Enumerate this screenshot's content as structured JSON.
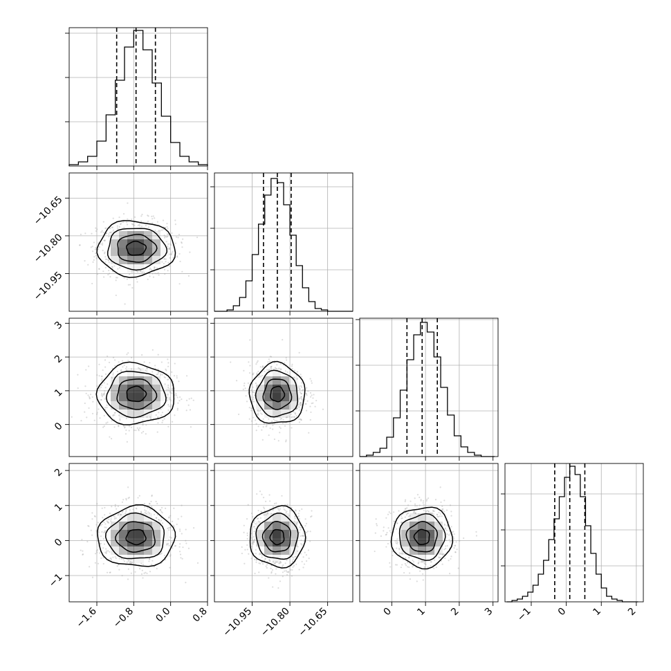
{
  "chart_data": {
    "type": "corner",
    "parameters": [
      {
        "range": [
          -2.2,
          0.8
        ],
        "ticks": [
          -1.6,
          -0.8,
          0.0,
          0.8
        ],
        "tick_labels": [
          "−1.6",
          "−0.8",
          "0.0",
          "0.8"
        ],
        "mean": -0.75,
        "sd": 0.42,
        "quantiles": [
          -1.17,
          -0.75,
          -0.33
        ]
      },
      {
        "range": [
          -11.1,
          -10.55
        ],
        "ticks": [
          -10.95,
          -10.8,
          -10.65
        ],
        "tick_labels": [
          "−10.95",
          "−10.80",
          "−10.65"
        ],
        "mean": -10.85,
        "sd": 0.055,
        "quantiles": [
          -10.905,
          -10.85,
          -10.795
        ]
      },
      {
        "range": [
          -0.95,
          3.15
        ],
        "ticks": [
          0,
          1,
          2,
          3
        ],
        "tick_labels": [
          "0",
          "1",
          "2",
          "3"
        ],
        "mean": 0.9,
        "sd": 0.45,
        "quantiles": [
          0.45,
          0.9,
          1.35
        ]
      },
      {
        "range": [
          -1.75,
          2.2
        ],
        "ticks": [
          -1,
          0,
          1,
          2
        ],
        "tick_labels": [
          "−1",
          "0",
          "1",
          "2"
        ],
        "mean": 0.1,
        "sd": 0.43,
        "quantiles": [
          -0.33,
          0.1,
          0.53
        ]
      }
    ],
    "histograms": [
      {
        "param": 0,
        "bin_edges": [
          -2.2,
          -2.0,
          -1.8,
          -1.6,
          -1.4,
          -1.2,
          -1.0,
          -0.8,
          -0.6,
          -0.4,
          -0.2,
          0.0,
          0.2,
          0.4,
          0.6,
          0.8
        ],
        "counts": [
          0.01,
          0.03,
          0.07,
          0.18,
          0.37,
          0.62,
          0.86,
          0.98,
          0.84,
          0.6,
          0.36,
          0.17,
          0.07,
          0.03,
          0.01
        ],
        "ylim": [
          0,
          1.0
        ],
        "yticks": [
          0.32,
          0.64,
          0.96
        ]
      },
      {
        "param": 1,
        "bin_edges": [
          -11.1,
          -11.075,
          -11.05,
          -11.025,
          -11.0,
          -10.975,
          -10.95,
          -10.925,
          -10.9,
          -10.875,
          -10.85,
          -10.825,
          -10.8,
          -10.775,
          -10.75,
          -10.725,
          -10.7,
          -10.675,
          -10.65,
          -10.625,
          -10.6,
          -10.575,
          -10.55
        ],
        "counts": [
          0.0,
          0.0,
          0.01,
          0.04,
          0.1,
          0.22,
          0.41,
          0.63,
          0.84,
          0.96,
          0.93,
          0.77,
          0.55,
          0.33,
          0.17,
          0.07,
          0.02,
          0.01,
          0.0,
          0.0,
          0.0,
          0.0
        ],
        "ylim": [
          0,
          1.0
        ],
        "yticks": [
          0.3,
          0.6,
          0.9
        ]
      },
      {
        "param": 2,
        "bin_edges": [
          -0.95,
          -0.75,
          -0.55,
          -0.35,
          -0.15,
          0.05,
          0.25,
          0.45,
          0.65,
          0.85,
          1.05,
          1.25,
          1.45,
          1.65,
          1.85,
          2.05,
          2.25,
          2.45,
          2.65,
          2.85,
          3.05
        ],
        "counts": [
          0.0,
          0.01,
          0.03,
          0.06,
          0.14,
          0.28,
          0.48,
          0.7,
          0.88,
          0.97,
          0.9,
          0.72,
          0.5,
          0.3,
          0.15,
          0.07,
          0.03,
          0.01,
          0.0,
          0.0
        ],
        "ylim": [
          0,
          1.0
        ],
        "yticks": [
          0.33,
          0.66,
          0.99
        ]
      },
      {
        "param": 3,
        "bin_edges": [
          -1.7,
          -1.55,
          -1.4,
          -1.25,
          -1.1,
          -0.95,
          -0.8,
          -0.65,
          -0.5,
          -0.35,
          -0.2,
          -0.05,
          0.1,
          0.25,
          0.4,
          0.55,
          0.7,
          0.85,
          1.0,
          1.15,
          1.3,
          1.45,
          1.6,
          1.75,
          1.9,
          2.05
        ],
        "counts": [
          0.0,
          0.01,
          0.02,
          0.04,
          0.07,
          0.12,
          0.2,
          0.3,
          0.45,
          0.6,
          0.76,
          0.9,
          0.98,
          0.92,
          0.76,
          0.55,
          0.35,
          0.2,
          0.1,
          0.04,
          0.02,
          0.01,
          0.0,
          0.0,
          0.0
        ],
        "ylim": [
          0,
          1.0
        ],
        "yticks": [
          0.26,
          0.52,
          0.78
        ]
      }
    ],
    "pairs": [
      {
        "x": 0,
        "y": 1,
        "levels": [
          0.5,
          1.0,
          1.5,
          2.0
        ]
      },
      {
        "x": 0,
        "y": 2,
        "levels": [
          0.5,
          1.0,
          1.5,
          2.0
        ]
      },
      {
        "x": 1,
        "y": 2,
        "levels": [
          0.5,
          1.0,
          1.5,
          2.0
        ]
      },
      {
        "x": 0,
        "y": 3,
        "levels": [
          0.5,
          1.0,
          1.5,
          2.0
        ]
      },
      {
        "x": 1,
        "y": 3,
        "levels": [
          0.5,
          1.0,
          1.5,
          2.0
        ]
      },
      {
        "x": 2,
        "y": 3,
        "levels": [
          0.5,
          1.0,
          1.5,
          2.0
        ]
      }
    ],
    "grid": true,
    "colors": {
      "line": "#000000",
      "grid": "#b0b0b0",
      "scatter": "#9a9a9a",
      "density": "#000000"
    }
  }
}
